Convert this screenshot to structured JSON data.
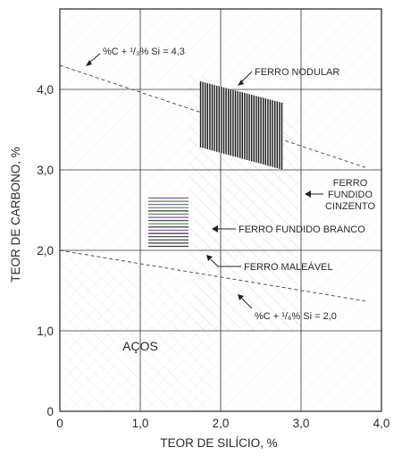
{
  "chart_data": {
    "type": "scatter",
    "xlabel": "TEOR DE SILÍCIO, %",
    "ylabel": "TEOR DE CARBONO, %",
    "xlim": [
      0,
      4.0
    ],
    "ylim": [
      0,
      5.0
    ],
    "x_ticks": [
      "0",
      "1,0",
      "2,0",
      "3,0",
      "4,0"
    ],
    "y_ticks": [
      "0",
      "1,0",
      "2,0",
      "3,0",
      "4,0"
    ],
    "grid": true,
    "lines": [
      {
        "label": "%C + ¹/₃% Si = 4,3",
        "x": [
          0,
          3.8
        ],
        "y": [
          4.3,
          3.03
        ]
      },
      {
        "label": "%C + ¹/₆% Si = 2,0",
        "x": [
          0,
          3.8
        ],
        "y": [
          2.0,
          1.37
        ]
      }
    ],
    "regions": [
      {
        "label": "FERRO NODULAR",
        "x": [
          1.75,
          2.78
        ],
        "y": [
          3.0,
          4.1
        ]
      },
      {
        "label": "FERRO FUNDIDO CINZENTO",
        "x": [
          1.6,
          3.0
        ],
        "y": [
          1.0,
          4.25
        ]
      },
      {
        "label": "FERRO FUNDIDO BRANCO",
        "x": [
          1.1,
          1.6
        ],
        "y": [
          2.0,
          2.65
        ]
      },
      {
        "label": "FERRO MALEÁVEL",
        "x": [
          1.1,
          1.6
        ],
        "y": [
          2.0,
          2.65
        ]
      },
      {
        "label": "AÇOS",
        "x": [
          0,
          1.9
        ],
        "y": [
          0,
          2.0
        ]
      }
    ]
  },
  "labels": {
    "line_upper": "%C + ¹/₃% Si = 4,3",
    "line_lower": "%C + ¹/₆% Si = 2,0",
    "nodular": "FERRO NODULAR",
    "cinzento_1": "FERRO",
    "cinzento_2": "FUNDIDO",
    "cinzento_3": "CINZENTO",
    "branco": "FERRO FUNDIDO BRANCO",
    "maleavel": "FERRO MALEÁVEL",
    "acos": "AÇOS"
  }
}
